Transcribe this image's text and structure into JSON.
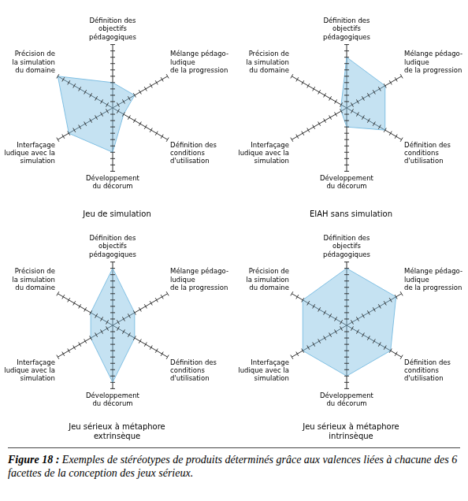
{
  "chart_data": [
    {
      "type": "radar",
      "title": "Jeu de simulation",
      "categories": [
        "Définition des\nobjectifs\npédagogiques",
        "Mélange pédago-\nludique\nde la progression",
        "Définition des\nconditions\nd'utilisation",
        "Développement\ndu décorum",
        "Interfaçage\nludique avec la\nsimulation",
        "Précision de\nla simulation\ndu domaine"
      ],
      "values": [
        4,
        4,
        2,
        7,
        8,
        10
      ],
      "color": "#7fbfe3",
      "ylim": [
        0,
        10
      ],
      "yticks": [
        0,
        1,
        2,
        3,
        4,
        5,
        6,
        7,
        8,
        9,
        10
      ],
      "grid": false,
      "tick_labels": false
    },
    {
      "type": "radar",
      "title": "EIAH sans simulation",
      "categories": [
        "Définition des\nobjectifs\npédagogiques",
        "Mélange pédago-\nludique\nde la progression",
        "Définition des\nconditions\nd'utilisation",
        "Développement\ndu décorum",
        "Interfaçage\nludique avec la\nsimulation",
        "Précision de\nla simulation\ndu domaine"
      ],
      "values": [
        8,
        7,
        7,
        3,
        1,
        1
      ],
      "color": "#7fbfe3",
      "ylim": [
        0,
        10
      ],
      "yticks": [
        0,
        1,
        2,
        3,
        4,
        5,
        6,
        7,
        8,
        9,
        10
      ],
      "grid": false,
      "tick_labels": false
    },
    {
      "type": "radar",
      "title": "Jeu sérieux à métaphore\nextrinsèque",
      "categories": [
        "Définition des\nobjectifs\npédagogiques",
        "Mélange pédago-\nludique\nde la progression",
        "Définition des\nconditions\nd'utilisation",
        "Développement\ndu décorum",
        "Interfaçage\nludique avec la\nsimulation",
        "Précision de\nla simulation\ndu domaine"
      ],
      "values": [
        9,
        4,
        4,
        9,
        4,
        4
      ],
      "color": "#7fbfe3",
      "ylim": [
        0,
        10
      ],
      "yticks": [
        0,
        1,
        2,
        3,
        4,
        5,
        6,
        7,
        8,
        9,
        10
      ],
      "grid": false,
      "tick_labels": false
    },
    {
      "type": "radar",
      "title": "Jeu sérieux à métaphore\nintrinsèque",
      "categories": [
        "Définition des\nobjectifs\npédagogiques",
        "Mélange pédago-\nludique\nde la progression",
        "Définition des\nconditions\nd'utilisation",
        "Développement\ndu décorum",
        "Interfaçage\nludique avec la\nsimulation",
        "Précision de\nla simulation\ndu domaine"
      ],
      "values": [
        9,
        9,
        8,
        8,
        8,
        8
      ],
      "color": "#7fbfe3",
      "ylim": [
        0,
        10
      ],
      "yticks": [
        0,
        1,
        2,
        3,
        4,
        5,
        6,
        7,
        8,
        9,
        10
      ],
      "grid": false,
      "tick_labels": false
    }
  ],
  "caption": {
    "label": "Figure 18 :",
    "text": "Exemples de stéréotypes de produits déterminés grâce aux valences liées à chacune des 6 facettes de la conception des jeux sérieux."
  }
}
